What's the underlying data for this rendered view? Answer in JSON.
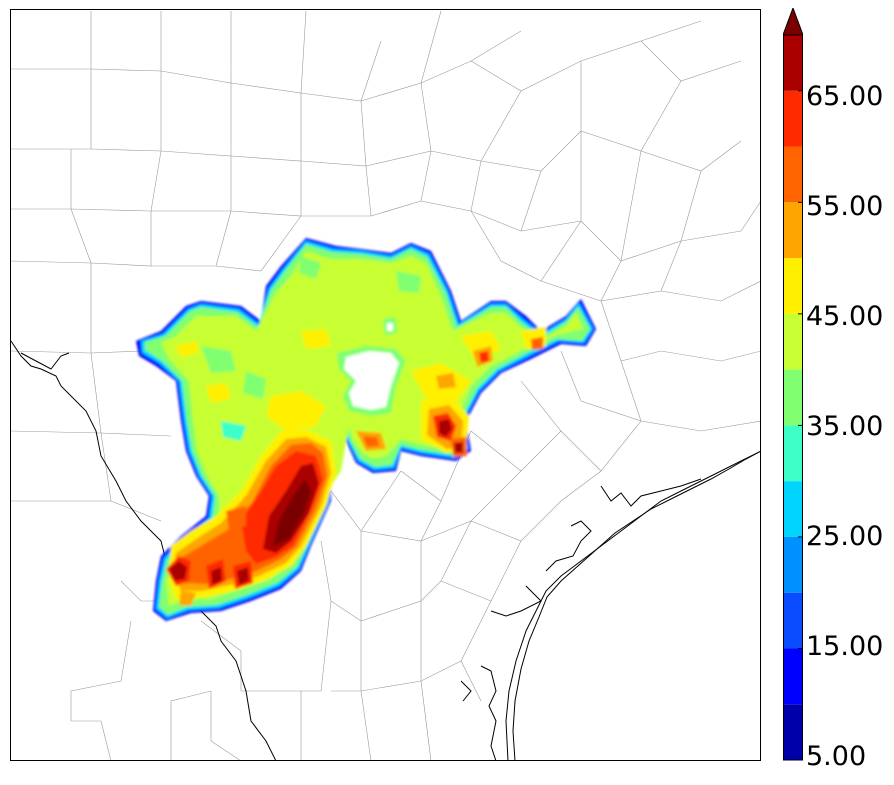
{
  "colorbar": {
    "tick_labels": [
      "5.00",
      "15.00",
      "25.00",
      "35.00",
      "45.00",
      "55.00",
      "65.00"
    ],
    "range": [
      5,
      70
    ],
    "extend": "max",
    "bins": [
      {
        "from": 5,
        "to": 10,
        "color": "#0000aa"
      },
      {
        "from": 10,
        "to": 15,
        "color": "#0000ff"
      },
      {
        "from": 15,
        "to": 20,
        "color": "#0a4cff"
      },
      {
        "from": 20,
        "to": 25,
        "color": "#0090ff"
      },
      {
        "from": 25,
        "to": 30,
        "color": "#00d4ff"
      },
      {
        "from": 30,
        "to": 35,
        "color": "#3cffc8"
      },
      {
        "from": 35,
        "to": 40,
        "color": "#80ff70"
      },
      {
        "from": 40,
        "to": 45,
        "color": "#c8ff32"
      },
      {
        "from": 45,
        "to": 50,
        "color": "#fff000"
      },
      {
        "from": 50,
        "to": 55,
        "color": "#ffa500"
      },
      {
        "from": 55,
        "to": 60,
        "color": "#ff6400"
      },
      {
        "from": 60,
        "to": 65,
        "color": "#ff2a00"
      },
      {
        "from": 65,
        "to": 70,
        "color": "#aa0000"
      }
    ],
    "extend_color": "#7a0000"
  },
  "map": {
    "region": "south and central Texas (county boundaries)",
    "field": "filled contours of a 5-70 scalar field over inland counties",
    "coastline_color": "#000000",
    "county_line_color": "#9a9a9a"
  }
}
